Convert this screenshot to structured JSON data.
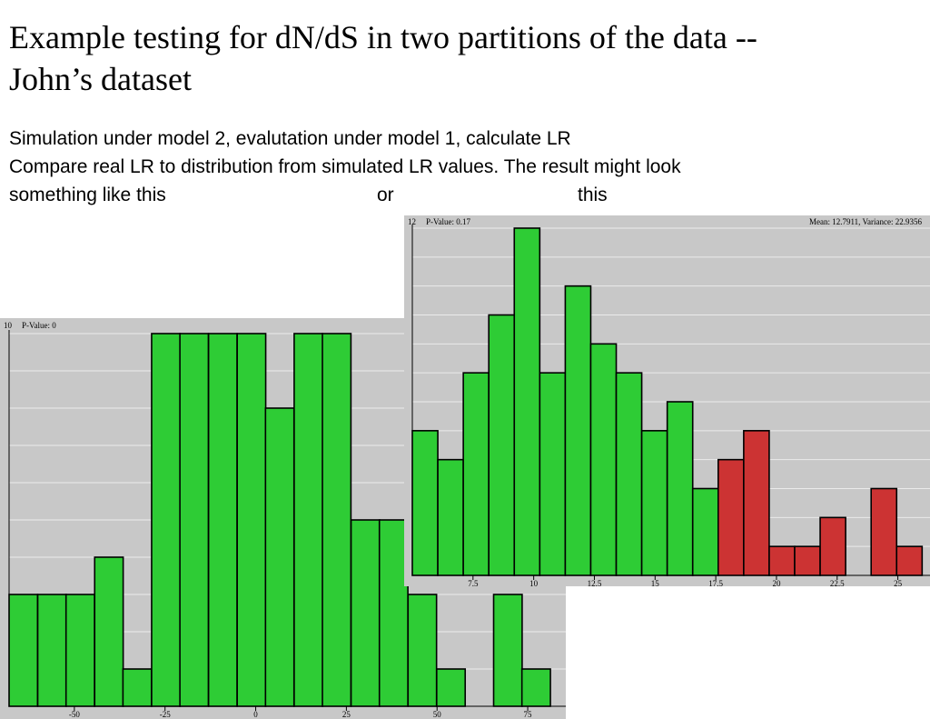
{
  "slide": {
    "title_line1": "Example testing for dN/dS in two partitions of the data --",
    "title_line2": "John’s dataset",
    "text_line1": "Simulation under model 2, evalutation under model 1, calculate LR",
    "text_line2": "Compare real LR to distribution from simulated LR values.  The result might look",
    "text_line3_a": "something like this",
    "text_line3_b": "or",
    "text_line3_c": "this"
  },
  "chart_data": [
    {
      "type": "bar",
      "ymax_label": "10",
      "pvalue_label": "P-Value: 0",
      "ylim": [
        0,
        10
      ],
      "xlim": [
        -68,
        84
      ],
      "bin_width": 7.86,
      "bin_starts": [
        -68,
        -60.1,
        -52.3,
        -44.4,
        -36.6,
        -28.7,
        -20.9,
        -13,
        -5.1,
        2.7,
        10.6,
        18.4,
        26.3,
        34.1,
        42,
        49.9,
        57.7,
        65.6,
        73.4
      ],
      "values": [
        3,
        3,
        3,
        4,
        1,
        10,
        10,
        10,
        10,
        8,
        10,
        10,
        5,
        5,
        3,
        1,
        0,
        3,
        1
      ],
      "colors": [
        "green",
        "green",
        "green",
        "green",
        "green",
        "green",
        "green",
        "green",
        "green",
        "green",
        "green",
        "green",
        "green",
        "green",
        "green",
        "green",
        "green",
        "green",
        "green"
      ],
      "x_ticks": [
        "-50",
        "-25",
        "0",
        "25",
        "50",
        "75"
      ],
      "x_tick_values": [
        -50,
        -25,
        0,
        25,
        50,
        75
      ],
      "grid": true,
      "palette": {
        "green": "#2ecc35",
        "red": "#cc3333",
        "background": "#c8c8c8",
        "gridline": "#ebebeb"
      }
    },
    {
      "type": "bar",
      "ymax_label": "12",
      "pvalue_label": "P-Value: 0.17",
      "stats_label": "Mean: 12.7911, Variance: 22.9356",
      "ylim": [
        0,
        12
      ],
      "xlim": [
        5,
        26.1
      ],
      "bin_width": 1.05,
      "bin_starts": [
        5,
        6.05,
        7.1,
        8.15,
        9.2,
        10.25,
        11.3,
        12.35,
        13.4,
        14.45,
        15.5,
        16.55,
        17.6,
        18.65,
        19.7,
        20.75,
        21.8,
        22.85,
        23.9,
        24.95
      ],
      "values": [
        5,
        4,
        7,
        9,
        12,
        7,
        10,
        8,
        7,
        5,
        6,
        3,
        4,
        5,
        1,
        1,
        2,
        0,
        3,
        1
      ],
      "colors": [
        "green",
        "green",
        "green",
        "green",
        "green",
        "green",
        "green",
        "green",
        "green",
        "green",
        "green",
        "green",
        "red",
        "red",
        "red",
        "red",
        "red",
        "red",
        "red",
        "red"
      ],
      "x_ticks": [
        "7.5",
        "10",
        "12.5",
        "15",
        "17.5",
        "20",
        "22.5",
        "25"
      ],
      "x_tick_values": [
        7.5,
        10,
        12.5,
        15,
        17.5,
        20,
        22.5,
        25
      ],
      "grid": true,
      "palette": {
        "green": "#2ecc35",
        "red": "#cc3333",
        "background": "#c8c8c8",
        "gridline": "#ebebeb"
      }
    }
  ]
}
